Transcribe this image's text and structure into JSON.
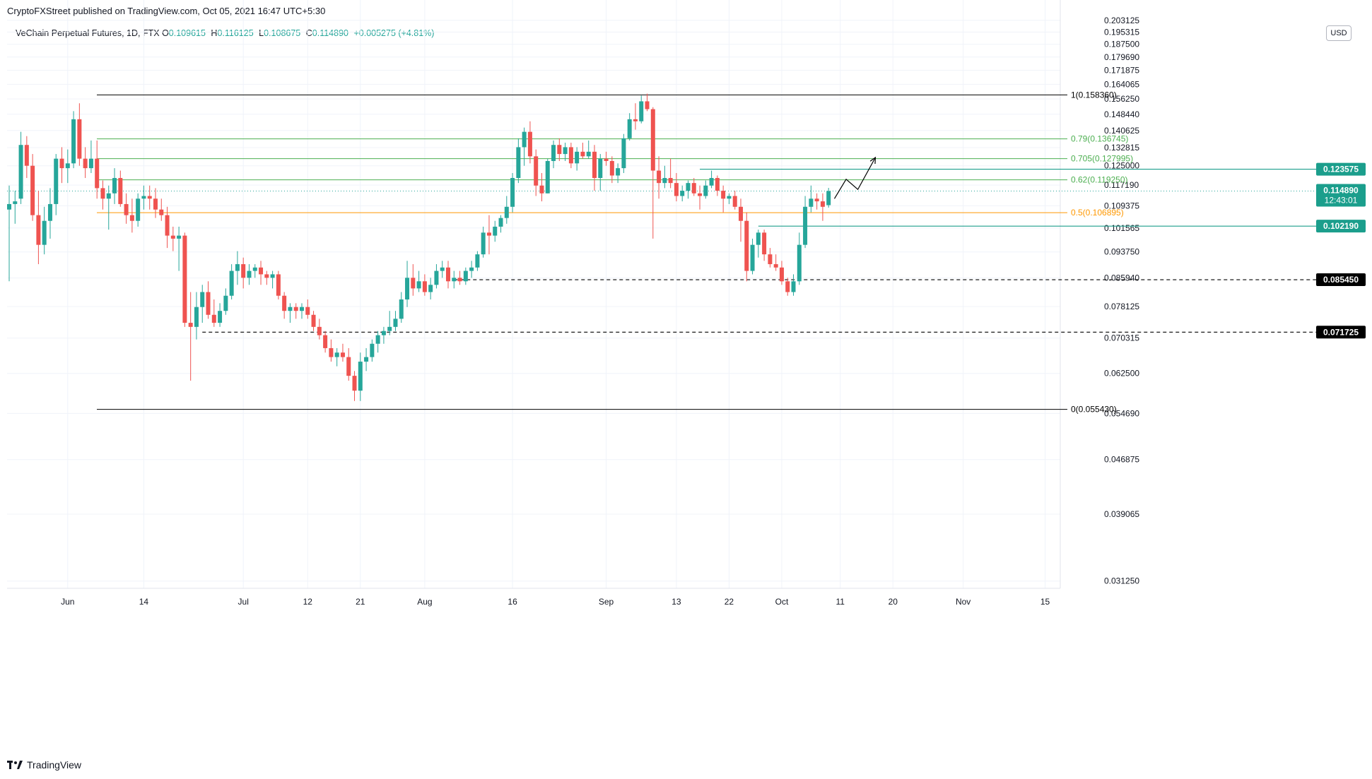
{
  "header": {
    "published_line": "CryptoFXStreet published on TradingView.com, Oct 05, 2021 16:47 UTC+5:30"
  },
  "legend": {
    "symbol": "VeChain Perpetual Futures, 1D, FTX",
    "o_label": "O",
    "o_value": "0.109615",
    "h_label": "H",
    "h_value": "0.116125",
    "l_label": "L",
    "l_value": "0.108675",
    "c_label": "C",
    "c_value": "0.114890",
    "change": "+0.005275 (+4.81%)"
  },
  "currency_button": "USD",
  "footer": {
    "brand": "TradingView"
  },
  "colors": {
    "up": "#26a69a",
    "down": "#ef5350",
    "fib_green": "#4caf50",
    "fib_orange": "#ff9800",
    "grid": "#f0f3fa",
    "axis_text": "#131722",
    "label_teal": "#1b9e8c",
    "label_black": "#000000"
  },
  "chart_data": {
    "type": "candlestick",
    "yscale": "log",
    "ylim": [
      0.0305,
      0.2035
    ],
    "y_ticks": [
      "0.203125",
      "0.195315",
      "0.187500",
      "0.179690",
      "0.171875",
      "0.164065",
      "0.156250",
      "0.148440",
      "0.140625",
      "0.132815",
      "0.125000",
      "0.117190",
      "0.109375",
      "0.101565",
      "0.093750",
      "0.085940",
      "0.078125",
      "0.070315",
      "0.062500",
      "0.054690",
      "0.046875",
      "0.039065",
      "0.031250"
    ],
    "x_ticks": [
      {
        "label": "Jun",
        "date": "2021-06-01"
      },
      {
        "label": "14",
        "date": "2021-06-14"
      },
      {
        "label": "Jul",
        "date": "2021-07-01"
      },
      {
        "label": "12",
        "date": "2021-07-12"
      },
      {
        "label": "21",
        "date": "2021-07-21"
      },
      {
        "label": "Aug",
        "date": "2021-08-01"
      },
      {
        "label": "16",
        "date": "2021-08-16"
      },
      {
        "label": "Sep",
        "date": "2021-09-01"
      },
      {
        "label": "13",
        "date": "2021-09-13"
      },
      {
        "label": "22",
        "date": "2021-09-22"
      },
      {
        "label": "Oct",
        "date": "2021-10-01"
      },
      {
        "label": "11",
        "date": "2021-10-11"
      },
      {
        "label": "20",
        "date": "2021-10-20"
      },
      {
        "label": "Nov",
        "date": "2021-11-01"
      },
      {
        "label": "15",
        "date": "2021-11-15"
      }
    ],
    "candles": [
      [
        "2021-05-22",
        0.108,
        0.117,
        0.085,
        0.11
      ],
      [
        "2021-05-23",
        0.11,
        0.115,
        0.103,
        0.111
      ],
      [
        "2021-05-24",
        0.112,
        0.14,
        0.11,
        0.134
      ],
      [
        "2021-05-25",
        0.134,
        0.138,
        0.12,
        0.125
      ],
      [
        "2021-05-26",
        0.125,
        0.13,
        0.104,
        0.106
      ],
      [
        "2021-05-27",
        0.106,
        0.115,
        0.09,
        0.096
      ],
      [
        "2021-05-28",
        0.096,
        0.109,
        0.093,
        0.104
      ],
      [
        "2021-05-29",
        0.104,
        0.116,
        0.098,
        0.11
      ],
      [
        "2021-05-30",
        0.11,
        0.13,
        0.106,
        0.128
      ],
      [
        "2021-05-31",
        0.128,
        0.133,
        0.118,
        0.124
      ],
      [
        "2021-06-01",
        0.124,
        0.132,
        0.118,
        0.126
      ],
      [
        "2021-06-02",
        0.126,
        0.15,
        0.124,
        0.146
      ],
      [
        "2021-06-03",
        0.146,
        0.154,
        0.125,
        0.128
      ],
      [
        "2021-06-04",
        0.128,
        0.133,
        0.12,
        0.124
      ],
      [
        "2021-06-05",
        0.124,
        0.136,
        0.122,
        0.128
      ],
      [
        "2021-06-06",
        0.128,
        0.136,
        0.112,
        0.116
      ],
      [
        "2021-06-07",
        0.116,
        0.119,
        0.108,
        0.112
      ],
      [
        "2021-06-08",
        0.112,
        0.117,
        0.101,
        0.114
      ],
      [
        "2021-06-09",
        0.114,
        0.124,
        0.11,
        0.12
      ],
      [
        "2021-06-10",
        0.12,
        0.123,
        0.109,
        0.11
      ],
      [
        "2021-06-11",
        0.11,
        0.114,
        0.103,
        0.106
      ],
      [
        "2021-06-12",
        0.106,
        0.112,
        0.1,
        0.104
      ],
      [
        "2021-06-13",
        0.104,
        0.114,
        0.102,
        0.112
      ],
      [
        "2021-06-14",
        0.112,
        0.117,
        0.108,
        0.113
      ],
      [
        "2021-06-15",
        0.113,
        0.117,
        0.108,
        0.112
      ],
      [
        "2021-06-16",
        0.112,
        0.116,
        0.105,
        0.108
      ],
      [
        "2021-06-17",
        0.108,
        0.112,
        0.104,
        0.106
      ],
      [
        "2021-06-18",
        0.106,
        0.109,
        0.095,
        0.099
      ],
      [
        "2021-06-19",
        0.099,
        0.102,
        0.094,
        0.098
      ],
      [
        "2021-06-20",
        0.098,
        0.102,
        0.088,
        0.099
      ],
      [
        "2021-06-21",
        0.099,
        0.1,
        0.073,
        0.074
      ],
      [
        "2021-06-22",
        0.074,
        0.082,
        0.061,
        0.073
      ],
      [
        "2021-06-23",
        0.073,
        0.082,
        0.07,
        0.078
      ],
      [
        "2021-06-24",
        0.078,
        0.084,
        0.074,
        0.082
      ],
      [
        "2021-06-25",
        0.082,
        0.085,
        0.075,
        0.076
      ],
      [
        "2021-06-26",
        0.076,
        0.08,
        0.073,
        0.074
      ],
      [
        "2021-06-27",
        0.074,
        0.079,
        0.073,
        0.077
      ],
      [
        "2021-06-28",
        0.077,
        0.083,
        0.076,
        0.081
      ],
      [
        "2021-06-29",
        0.081,
        0.09,
        0.08,
        0.088
      ],
      [
        "2021-06-30",
        0.088,
        0.094,
        0.084,
        0.09
      ],
      [
        "2021-07-01",
        0.09,
        0.092,
        0.083,
        0.086
      ],
      [
        "2021-07-02",
        0.086,
        0.09,
        0.084,
        0.088
      ],
      [
        "2021-07-03",
        0.088,
        0.09,
        0.086,
        0.089
      ],
      [
        "2021-07-04",
        0.089,
        0.091,
        0.084,
        0.087
      ],
      [
        "2021-07-05",
        0.087,
        0.088,
        0.084,
        0.086
      ],
      [
        "2021-07-06",
        0.086,
        0.088,
        0.083,
        0.087
      ],
      [
        "2021-07-07",
        0.087,
        0.088,
        0.08,
        0.081
      ],
      [
        "2021-07-08",
        0.081,
        0.082,
        0.075,
        0.077
      ],
      [
        "2021-07-09",
        0.077,
        0.079,
        0.074,
        0.078
      ],
      [
        "2021-07-10",
        0.078,
        0.079,
        0.075,
        0.077
      ],
      [
        "2021-07-11",
        0.077,
        0.079,
        0.075,
        0.078
      ],
      [
        "2021-07-12",
        0.078,
        0.08,
        0.075,
        0.076
      ],
      [
        "2021-07-13",
        0.076,
        0.077,
        0.072,
        0.073
      ],
      [
        "2021-07-14",
        0.073,
        0.075,
        0.07,
        0.071
      ],
      [
        "2021-07-15",
        0.071,
        0.072,
        0.067,
        0.068
      ],
      [
        "2021-07-16",
        0.068,
        0.07,
        0.065,
        0.066
      ],
      [
        "2021-07-17",
        0.066,
        0.068,
        0.064,
        0.067
      ],
      [
        "2021-07-18",
        0.067,
        0.069,
        0.065,
        0.066
      ],
      [
        "2021-07-19",
        0.066,
        0.068,
        0.061,
        0.062
      ],
      [
        "2021-07-20",
        0.062,
        0.063,
        0.057,
        0.059
      ],
      [
        "2021-07-21",
        0.059,
        0.067,
        0.057,
        0.065
      ],
      [
        "2021-07-22",
        0.065,
        0.068,
        0.063,
        0.066
      ],
      [
        "2021-07-23",
        0.066,
        0.07,
        0.065,
        0.069
      ],
      [
        "2021-07-24",
        0.069,
        0.072,
        0.067,
        0.071
      ],
      [
        "2021-07-25",
        0.071,
        0.073,
        0.069,
        0.072
      ],
      [
        "2021-07-26",
        0.072,
        0.077,
        0.071,
        0.073
      ],
      [
        "2021-07-27",
        0.073,
        0.077,
        0.072,
        0.075
      ],
      [
        "2021-07-28",
        0.075,
        0.082,
        0.074,
        0.08
      ],
      [
        "2021-07-29",
        0.08,
        0.091,
        0.078,
        0.086
      ],
      [
        "2021-07-30",
        0.086,
        0.09,
        0.081,
        0.083
      ],
      [
        "2021-07-31",
        0.083,
        0.088,
        0.082,
        0.085
      ],
      [
        "2021-08-01",
        0.085,
        0.087,
        0.081,
        0.082
      ],
      [
        "2021-08-02",
        0.082,
        0.086,
        0.08,
        0.084
      ],
      [
        "2021-08-03",
        0.084,
        0.09,
        0.083,
        0.088
      ],
      [
        "2021-08-04",
        0.088,
        0.091,
        0.086,
        0.089
      ],
      [
        "2021-08-05",
        0.089,
        0.091,
        0.083,
        0.085
      ],
      [
        "2021-08-06",
        0.085,
        0.088,
        0.083,
        0.086
      ],
      [
        "2021-08-07",
        0.086,
        0.088,
        0.084,
        0.085
      ],
      [
        "2021-08-08",
        0.085,
        0.089,
        0.084,
        0.088
      ],
      [
        "2021-08-09",
        0.088,
        0.091,
        0.086,
        0.089
      ],
      [
        "2021-08-10",
        0.089,
        0.094,
        0.088,
        0.093
      ],
      [
        "2021-08-11",
        0.093,
        0.102,
        0.092,
        0.1
      ],
      [
        "2021-08-12",
        0.1,
        0.106,
        0.093,
        0.099
      ],
      [
        "2021-08-13",
        0.099,
        0.104,
        0.097,
        0.102
      ],
      [
        "2021-08-14",
        0.102,
        0.106,
        0.1,
        0.105
      ],
      [
        "2021-08-15",
        0.105,
        0.113,
        0.103,
        0.109
      ],
      [
        "2021-08-16",
        0.109,
        0.122,
        0.107,
        0.12
      ],
      [
        "2021-08-17",
        0.12,
        0.137,
        0.118,
        0.133
      ],
      [
        "2021-08-18",
        0.133,
        0.142,
        0.125,
        0.14
      ],
      [
        "2021-08-19",
        0.14,
        0.145,
        0.126,
        0.129
      ],
      [
        "2021-08-20",
        0.129,
        0.132,
        0.113,
        0.117
      ],
      [
        "2021-08-21",
        0.117,
        0.122,
        0.111,
        0.114
      ],
      [
        "2021-08-22",
        0.114,
        0.128,
        0.114,
        0.127
      ],
      [
        "2021-08-23",
        0.127,
        0.136,
        0.124,
        0.134
      ],
      [
        "2021-08-24",
        0.134,
        0.137,
        0.127,
        0.13
      ],
      [
        "2021-08-25",
        0.13,
        0.135,
        0.127,
        0.133
      ],
      [
        "2021-08-26",
        0.133,
        0.135,
        0.124,
        0.126
      ],
      [
        "2021-08-27",
        0.126,
        0.133,
        0.123,
        0.131
      ],
      [
        "2021-08-28",
        0.131,
        0.135,
        0.128,
        0.129
      ],
      [
        "2021-08-29",
        0.129,
        0.136,
        0.128,
        0.131
      ],
      [
        "2021-08-30",
        0.131,
        0.134,
        0.115,
        0.12
      ],
      [
        "2021-08-31",
        0.12,
        0.13,
        0.115,
        0.128
      ],
      [
        "2021-09-01",
        0.128,
        0.131,
        0.125,
        0.127
      ],
      [
        "2021-09-02",
        0.127,
        0.129,
        0.118,
        0.121
      ],
      [
        "2021-09-03",
        0.121,
        0.126,
        0.118,
        0.124
      ],
      [
        "2021-09-04",
        0.124,
        0.139,
        0.122,
        0.137
      ],
      [
        "2021-09-05",
        0.137,
        0.149,
        0.136,
        0.146
      ],
      [
        "2021-09-06",
        0.146,
        0.154,
        0.141,
        0.145
      ],
      [
        "2021-09-07",
        0.145,
        0.158,
        0.144,
        0.155
      ],
      [
        "2021-09-08",
        0.155,
        0.159,
        0.15,
        0.151
      ],
      [
        "2021-09-09",
        0.151,
        0.152,
        0.098,
        0.123
      ],
      [
        "2021-09-10",
        0.123,
        0.129,
        0.112,
        0.118
      ],
      [
        "2021-09-11",
        0.118,
        0.125,
        0.116,
        0.12
      ],
      [
        "2021-09-12",
        0.12,
        0.128,
        0.116,
        0.118
      ],
      [
        "2021-09-13",
        0.118,
        0.122,
        0.111,
        0.113
      ],
      [
        "2021-09-14",
        0.113,
        0.117,
        0.111,
        0.115
      ],
      [
        "2021-09-15",
        0.115,
        0.119,
        0.112,
        0.118
      ],
      [
        "2021-09-16",
        0.118,
        0.12,
        0.113,
        0.114
      ],
      [
        "2021-09-17",
        0.114,
        0.117,
        0.108,
        0.113
      ],
      [
        "2021-09-18",
        0.113,
        0.119,
        0.112,
        0.117
      ],
      [
        "2021-09-19",
        0.117,
        0.123,
        0.116,
        0.12
      ],
      [
        "2021-09-20",
        0.12,
        0.121,
        0.113,
        0.115
      ],
      [
        "2021-09-21",
        0.115,
        0.117,
        0.107,
        0.112
      ],
      [
        "2021-09-22",
        0.112,
        0.114,
        0.11,
        0.113
      ],
      [
        "2021-09-23",
        0.113,
        0.115,
        0.108,
        0.109
      ],
      [
        "2021-09-24",
        0.109,
        0.112,
        0.097,
        0.104
      ],
      [
        "2021-09-25",
        0.104,
        0.107,
        0.085,
        0.088
      ],
      [
        "2021-09-26",
        0.088,
        0.098,
        0.087,
        0.096
      ],
      [
        "2021-09-27",
        0.096,
        0.101,
        0.092,
        0.1
      ],
      [
        "2021-09-28",
        0.1,
        0.101,
        0.091,
        0.093
      ],
      [
        "2021-09-29",
        0.093,
        0.095,
        0.089,
        0.09
      ],
      [
        "2021-09-30",
        0.09,
        0.093,
        0.088,
        0.089
      ],
      [
        "2021-10-01",
        0.089,
        0.091,
        0.084,
        0.085
      ],
      [
        "2021-10-02",
        0.085,
        0.086,
        0.081,
        0.082
      ],
      [
        "2021-10-03",
        0.082,
        0.087,
        0.081,
        0.085
      ],
      [
        "2021-10-04",
        0.085,
        0.1,
        0.084,
        0.096
      ],
      [
        "2021-10-05",
        0.096,
        0.113,
        0.095,
        0.109
      ],
      [
        "2021-10-06",
        0.109,
        0.117,
        0.107,
        0.112
      ],
      [
        "2021-10-07",
        0.112,
        0.114,
        0.108,
        0.111
      ],
      [
        "2021-10-08",
        0.111,
        0.114,
        0.104,
        0.109
      ],
      [
        "2021-10-09",
        0.1096,
        0.1161,
        0.1087,
        0.1149
      ]
    ],
    "fib_levels": [
      {
        "label": "1(0.158360)",
        "value": 0.15836,
        "color": "#000000"
      },
      {
        "label": "0.79(0.136745)",
        "value": 0.136745,
        "color": "#4caf50"
      },
      {
        "label": "0.705(0.127995)",
        "value": 0.127995,
        "color": "#4caf50"
      },
      {
        "label": "0.62(0.119250)",
        "value": 0.11925,
        "color": "#4caf50"
      },
      {
        "label": "0.5(0.106895)",
        "value": 0.106895,
        "color": "#ff9800"
      },
      {
        "label": "0(0.055430)",
        "value": 0.05543,
        "color": "#000000"
      }
    ],
    "horizontal_lines": [
      {
        "value": 0.123575,
        "style": "solid",
        "color": "#1b9e8c",
        "start_date": "2021-09-17"
      },
      {
        "value": 0.10219,
        "style": "solid",
        "color": "#1b9e8c",
        "start_date": "2021-09-27"
      },
      {
        "value": 0.08545,
        "style": "dashed",
        "color": "#000000",
        "start_date": "2021-08-06"
      },
      {
        "value": 0.071725,
        "style": "dashed",
        "color": "#000000",
        "start_date": "2021-06-24"
      }
    ],
    "price_labels": [
      {
        "text": "0.123575",
        "value": 0.123575,
        "color": "#1b9e8c"
      },
      {
        "text": "0.114890",
        "subtext": "12:43:01",
        "value": 0.11489,
        "color": "#1b9e8c"
      },
      {
        "text": "0.102190",
        "value": 0.10219,
        "color": "#1b9e8c"
      },
      {
        "text": "0.085450",
        "value": 0.08545,
        "color": "#000000"
      },
      {
        "text": "0.071725",
        "value": 0.071725,
        "color": "#000000"
      }
    ],
    "last_price": 0.11489,
    "projection_path": [
      [
        "2021-10-10",
        0.112
      ],
      [
        "2021-10-12",
        0.1195
      ],
      [
        "2021-10-14",
        0.1155
      ],
      [
        "2021-10-17",
        0.1285
      ]
    ]
  }
}
